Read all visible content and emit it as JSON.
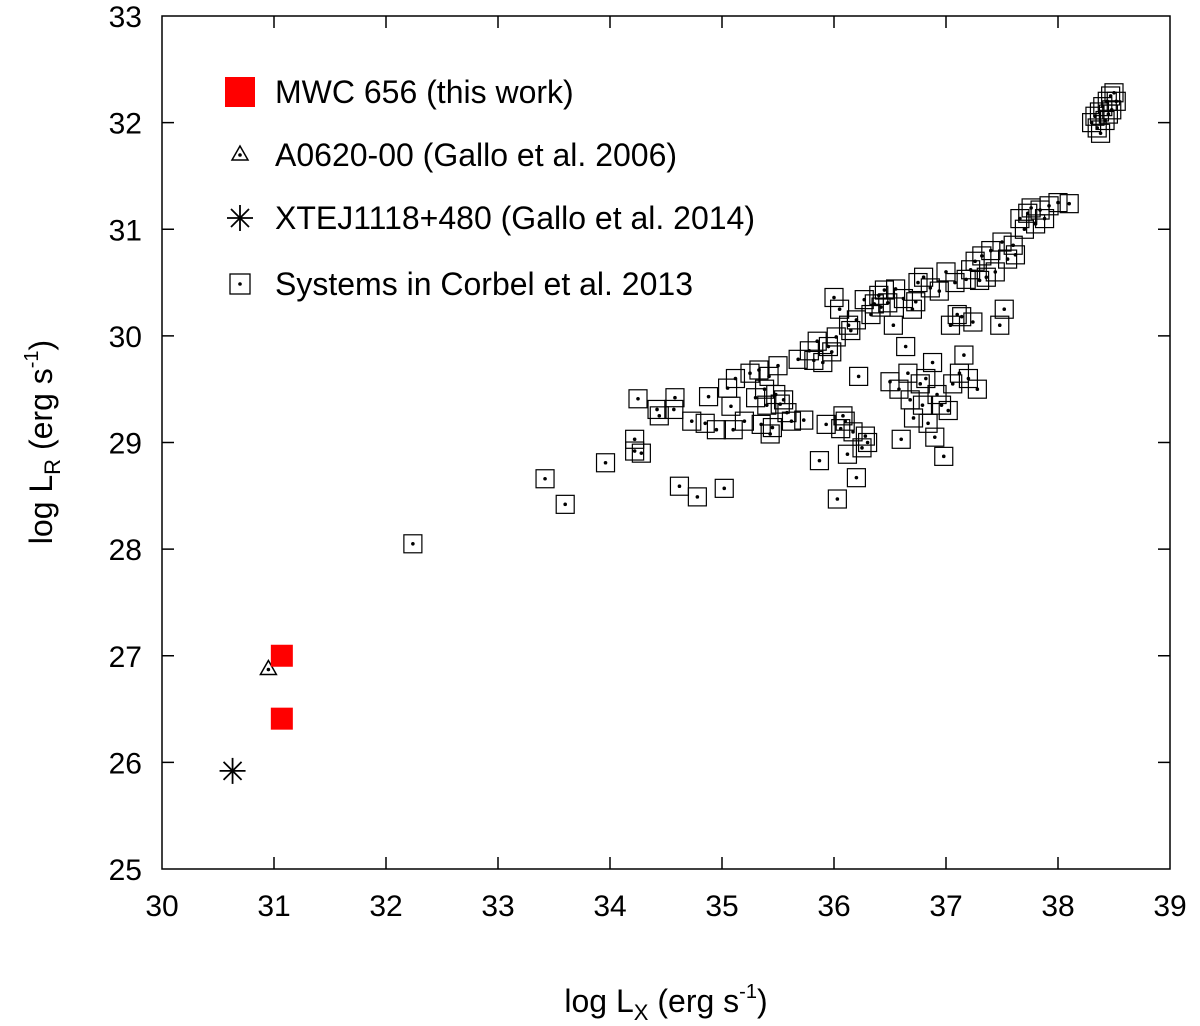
{
  "chart_data": {
    "type": "scatter",
    "xlabel": {
      "main": "log L",
      "sub": "X",
      "unit_open": " (erg s",
      "sup": "-1",
      "unit_close": ")"
    },
    "ylabel": {
      "main": "log L",
      "sub": "R",
      "unit_open": "  (erg s",
      "sup": "-1",
      "unit_close": ")"
    },
    "xlim": [
      30,
      39
    ],
    "ylim": [
      25,
      33
    ],
    "xticks": [
      "30",
      "31",
      "32",
      "33",
      "34",
      "35",
      "36",
      "37",
      "38",
      "39"
    ],
    "yticks": [
      "25",
      "26",
      "27",
      "28",
      "29",
      "30",
      "31",
      "32",
      "33"
    ],
    "grid": false,
    "legend_position": "top-left",
    "series": [
      {
        "name": "MWC 656 (this work)",
        "marker": "filled-square",
        "color": "#ff0000",
        "points": [
          [
            31.07,
            27.0
          ],
          [
            31.07,
            26.41
          ]
        ]
      },
      {
        "name": "A0620-00 (Gallo et al. 2006)",
        "marker": "triangle-dot",
        "color": "#000000",
        "points": [
          [
            30.95,
            26.88
          ]
        ]
      },
      {
        "name": "XTEJ1118+480 (Gallo et al. 2014)",
        "marker": "asterisk",
        "color": "#000000",
        "points": [
          [
            30.63,
            25.92
          ]
        ]
      },
      {
        "name": "Systems in Corbel et al. 2013",
        "marker": "square-dot",
        "color": "#000000",
        "points": [
          [
            32.24,
            28.05
          ],
          [
            33.42,
            28.66
          ],
          [
            33.6,
            28.42
          ],
          [
            33.96,
            28.81
          ],
          [
            34.22,
            29.03
          ],
          [
            34.22,
            28.92
          ],
          [
            34.25,
            29.41
          ],
          [
            34.28,
            28.9
          ],
          [
            34.42,
            29.31
          ],
          [
            34.44,
            29.25
          ],
          [
            34.57,
            29.31
          ],
          [
            34.58,
            29.42
          ],
          [
            34.62,
            28.59
          ],
          [
            34.73,
            29.2
          ],
          [
            34.78,
            28.49
          ],
          [
            34.85,
            29.18
          ],
          [
            34.88,
            29.43
          ],
          [
            34.95,
            29.12
          ],
          [
            35.02,
            28.57
          ],
          [
            35.05,
            29.51
          ],
          [
            35.08,
            29.34
          ],
          [
            35.1,
            29.12
          ],
          [
            35.12,
            29.6
          ],
          [
            35.2,
            29.2
          ],
          [
            35.25,
            29.65
          ],
          [
            35.3,
            29.42
          ],
          [
            35.33,
            29.68
          ],
          [
            35.35,
            29.17
          ],
          [
            35.38,
            29.5
          ],
          [
            35.4,
            29.35
          ],
          [
            35.42,
            29.62
          ],
          [
            35.43,
            29.08
          ],
          [
            35.45,
            29.14
          ],
          [
            35.48,
            29.45
          ],
          [
            35.5,
            29.72
          ],
          [
            35.52,
            29.36
          ],
          [
            35.55,
            29.4
          ],
          [
            35.58,
            29.28
          ],
          [
            35.62,
            29.2
          ],
          [
            35.68,
            29.78
          ],
          [
            35.73,
            29.21
          ],
          [
            35.78,
            29.86
          ],
          [
            35.82,
            29.77
          ],
          [
            35.85,
            29.95
          ],
          [
            35.87,
            28.83
          ],
          [
            35.9,
            29.75
          ],
          [
            35.93,
            29.17
          ],
          [
            35.95,
            29.9
          ],
          [
            35.98,
            29.85
          ],
          [
            36.0,
            30.36
          ],
          [
            36.02,
            29.99
          ],
          [
            36.03,
            28.47
          ],
          [
            36.05,
            30.25
          ],
          [
            36.06,
            29.13
          ],
          [
            36.08,
            29.25
          ],
          [
            36.1,
            29.2
          ],
          [
            36.12,
            28.89
          ],
          [
            36.13,
            30.1
          ],
          [
            36.15,
            30.05
          ],
          [
            36.17,
            29.1
          ],
          [
            36.2,
            28.67
          ],
          [
            36.2,
            30.15
          ],
          [
            36.22,
            29.62
          ],
          [
            36.25,
            28.95
          ],
          [
            36.27,
            30.34
          ],
          [
            36.28,
            29.06
          ],
          [
            36.3,
            29.0
          ],
          [
            36.33,
            30.2
          ],
          [
            36.36,
            30.3
          ],
          [
            36.4,
            30.38
          ],
          [
            36.42,
            30.27
          ],
          [
            36.45,
            30.43
          ],
          [
            36.48,
            30.31
          ],
          [
            36.5,
            29.57
          ],
          [
            36.53,
            30.1
          ],
          [
            36.55,
            30.44
          ],
          [
            36.58,
            29.5
          ],
          [
            36.6,
            29.03
          ],
          [
            36.62,
            30.35
          ],
          [
            36.64,
            29.9
          ],
          [
            36.66,
            29.65
          ],
          [
            36.68,
            29.4
          ],
          [
            36.7,
            30.25
          ],
          [
            36.71,
            29.23
          ],
          [
            36.73,
            30.32
          ],
          [
            36.75,
            30.5
          ],
          [
            36.77,
            29.55
          ],
          [
            36.79,
            29.35
          ],
          [
            36.8,
            30.55
          ],
          [
            36.82,
            29.6
          ],
          [
            36.84,
            29.18
          ],
          [
            36.86,
            30.45
          ],
          [
            36.88,
            29.75
          ],
          [
            36.9,
            29.05
          ],
          [
            36.92,
            29.45
          ],
          [
            36.94,
            30.42
          ],
          [
            36.96,
            29.35
          ],
          [
            36.98,
            28.87
          ],
          [
            37.0,
            30.6
          ],
          [
            37.02,
            29.3
          ],
          [
            37.04,
            30.1
          ],
          [
            37.06,
            29.55
          ],
          [
            37.08,
            30.5
          ],
          [
            37.1,
            30.2
          ],
          [
            37.12,
            29.65
          ],
          [
            37.14,
            30.18
          ],
          [
            37.16,
            29.82
          ],
          [
            37.18,
            30.53
          ],
          [
            37.2,
            29.6
          ],
          [
            37.22,
            30.62
          ],
          [
            37.24,
            30.13
          ],
          [
            37.26,
            30.7
          ],
          [
            37.28,
            29.5
          ],
          [
            37.3,
            30.52
          ],
          [
            37.32,
            30.75
          ],
          [
            37.36,
            30.55
          ],
          [
            37.4,
            30.8
          ],
          [
            37.44,
            30.6
          ],
          [
            37.48,
            30.1
          ],
          [
            37.5,
            30.88
          ],
          [
            37.52,
            30.25
          ],
          [
            37.55,
            30.72
          ],
          [
            37.6,
            30.85
          ],
          [
            37.62,
            30.76
          ],
          [
            37.66,
            31.1
          ],
          [
            37.7,
            31.0
          ],
          [
            37.73,
            31.15
          ],
          [
            37.76,
            31.2
          ],
          [
            37.8,
            31.05
          ],
          [
            37.84,
            31.18
          ],
          [
            37.88,
            31.1
          ],
          [
            37.92,
            31.22
          ],
          [
            38.0,
            31.25
          ],
          [
            38.1,
            31.24
          ],
          [
            38.3,
            32.0
          ],
          [
            38.33,
            32.06
          ],
          [
            38.35,
            31.95
          ],
          [
            38.37,
            32.1
          ],
          [
            38.38,
            31.9
          ],
          [
            38.4,
            32.15
          ],
          [
            38.42,
            32.02
          ],
          [
            38.44,
            32.2
          ],
          [
            38.45,
            32.08
          ],
          [
            38.47,
            32.25
          ],
          [
            38.48,
            32.12
          ],
          [
            38.5,
            32.28
          ],
          [
            38.52,
            32.2
          ]
        ]
      }
    ]
  }
}
